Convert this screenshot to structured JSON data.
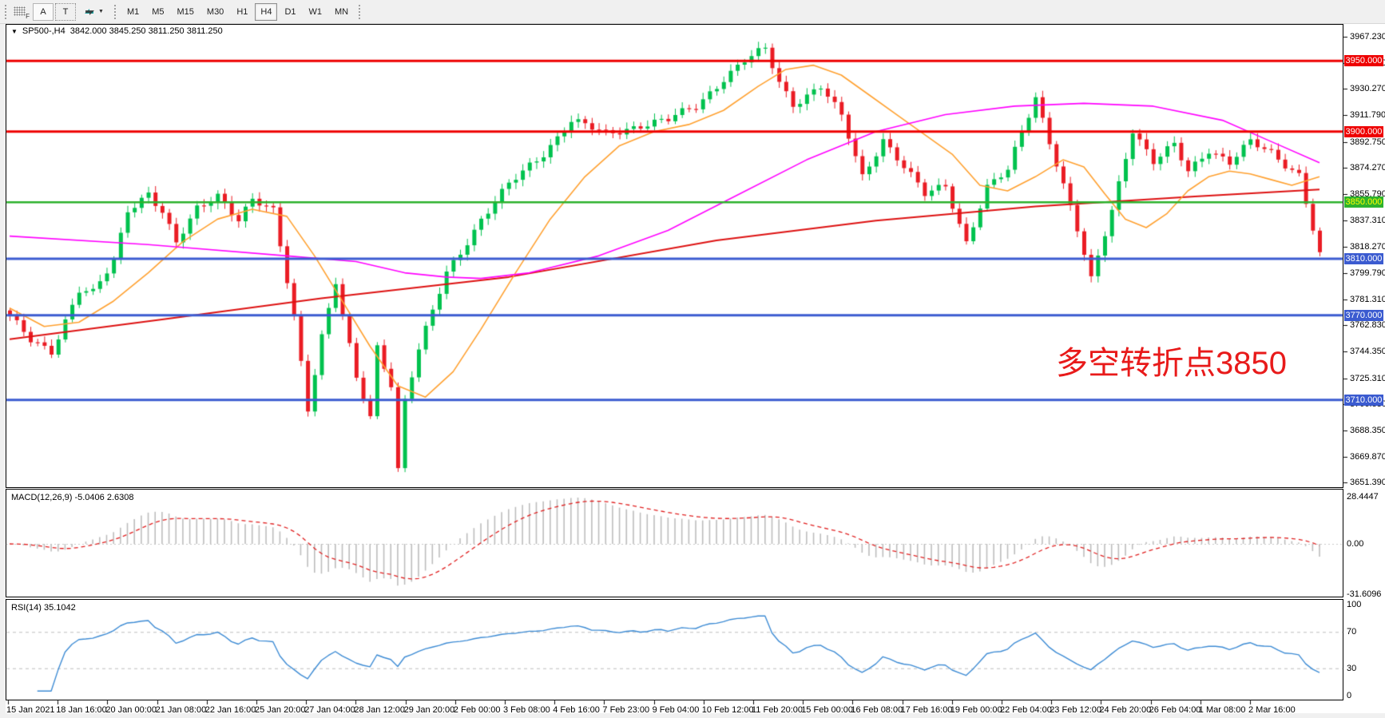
{
  "toolbar": {
    "grid_label": "F",
    "annotate_label": "A",
    "text_label": "T",
    "caret": "▼",
    "timeframes": [
      "M1",
      "M5",
      "M15",
      "M30",
      "H1",
      "H4",
      "D1",
      "W1",
      "MN"
    ],
    "active_timeframe": "H4"
  },
  "window": {
    "title_symbol_period": "SP500-,H4",
    "title_ohlc": "3842.000 3845.250 3811.250 3811.250",
    "dropdown_icon": "▼"
  },
  "indicators": {
    "macd_label": "MACD(12,26,9) -5.0406 2.6308",
    "rsi_label": "RSI(14) 35.1042"
  },
  "annotation": {
    "text": "多空转折点3850",
    "color": "#e81a1a"
  },
  "chart_data": {
    "type": "candlestick",
    "symbol": "SP500-",
    "timeframe": "H4",
    "last_bar_ohlc": {
      "open": 3842.0,
      "high": 3845.25,
      "low": 3811.25,
      "close": 3811.25
    },
    "bars": 190,
    "price_range_visible": [
      3647.8,
      3976.2
    ],
    "price_path_anchors": [
      [
        0,
        3768
      ],
      [
        3,
        3752
      ],
      [
        6,
        3745
      ],
      [
        10,
        3788
      ],
      [
        12,
        3785
      ],
      [
        15,
        3808
      ],
      [
        17,
        3845
      ],
      [
        20,
        3857
      ],
      [
        22,
        3843
      ],
      [
        24,
        3820
      ],
      [
        27,
        3845
      ],
      [
        30,
        3856
      ],
      [
        33,
        3838
      ],
      [
        35,
        3851
      ],
      [
        38,
        3843
      ],
      [
        40,
        3795
      ],
      [
        41,
        3770
      ],
      [
        43,
        3705
      ],
      [
        45,
        3755
      ],
      [
        47,
        3793
      ],
      [
        48,
        3768
      ],
      [
        50,
        3725
      ],
      [
        52,
        3698
      ],
      [
        53,
        3748
      ],
      [
        55,
        3722
      ],
      [
        56,
        3661
      ],
      [
        57,
        3710
      ],
      [
        59,
        3745
      ],
      [
        63,
        3800
      ],
      [
        68,
        3838
      ],
      [
        72,
        3862
      ],
      [
        77,
        3885
      ],
      [
        81,
        3908
      ],
      [
        86,
        3898
      ],
      [
        91,
        3905
      ],
      [
        95,
        3908
      ],
      [
        99,
        3918
      ],
      [
        103,
        3938
      ],
      [
        106,
        3950
      ],
      [
        109,
        3958
      ],
      [
        111,
        3935
      ],
      [
        113,
        3920
      ],
      [
        117,
        3932
      ],
      [
        120,
        3910
      ],
      [
        123,
        3868
      ],
      [
        126,
        3895
      ],
      [
        129,
        3875
      ],
      [
        132,
        3855
      ],
      [
        135,
        3862
      ],
      [
        138,
        3822
      ],
      [
        141,
        3860
      ],
      [
        144,
        3872
      ],
      [
        146,
        3900
      ],
      [
        148,
        3925
      ],
      [
        151,
        3878
      ],
      [
        154,
        3830
      ],
      [
        156,
        3794
      ],
      [
        159,
        3845
      ],
      [
        162,
        3902
      ],
      [
        165,
        3878
      ],
      [
        168,
        3890
      ],
      [
        170,
        3872
      ],
      [
        173,
        3888
      ],
      [
        176,
        3878
      ],
      [
        179,
        3892
      ],
      [
        182,
        3885
      ],
      [
        186,
        3870
      ],
      [
        189,
        3812
      ]
    ],
    "moving_averages": [
      {
        "name": "ma-long-red",
        "color": "#dd1111",
        "width": 2,
        "points": [
          [
            0,
            3753
          ],
          [
            22,
            3767
          ],
          [
            45,
            3782
          ],
          [
            72,
            3797
          ],
          [
            102,
            3823
          ],
          [
            125,
            3837
          ],
          [
            148,
            3847
          ],
          [
            171,
            3854
          ],
          [
            189,
            3859
          ]
        ]
      },
      {
        "name": "ma-fast-orange",
        "color": "#ffa02f",
        "width": 1.6,
        "points": [
          [
            0,
            3775
          ],
          [
            5,
            3762
          ],
          [
            10,
            3765
          ],
          [
            15,
            3780
          ],
          [
            20,
            3800
          ],
          [
            25,
            3822
          ],
          [
            30,
            3838
          ],
          [
            35,
            3845
          ],
          [
            40,
            3840
          ],
          [
            44,
            3812
          ],
          [
            48,
            3780
          ],
          [
            52,
            3748
          ],
          [
            56,
            3720
          ],
          [
            60,
            3712
          ],
          [
            64,
            3730
          ],
          [
            68,
            3760
          ],
          [
            73,
            3800
          ],
          [
            78,
            3838
          ],
          [
            83,
            3868
          ],
          [
            88,
            3890
          ],
          [
            93,
            3900
          ],
          [
            98,
            3905
          ],
          [
            103,
            3915
          ],
          [
            108,
            3932
          ],
          [
            112,
            3944
          ],
          [
            116,
            3947
          ],
          [
            120,
            3940
          ],
          [
            124,
            3926
          ],
          [
            128,
            3912
          ],
          [
            132,
            3898
          ],
          [
            136,
            3884
          ],
          [
            140,
            3862
          ],
          [
            144,
            3858
          ],
          [
            148,
            3868
          ],
          [
            152,
            3880
          ],
          [
            155,
            3875
          ],
          [
            158,
            3856
          ],
          [
            161,
            3838
          ],
          [
            164,
            3832
          ],
          [
            167,
            3842
          ],
          [
            170,
            3858
          ],
          [
            173,
            3868
          ],
          [
            176,
            3872
          ],
          [
            179,
            3870
          ],
          [
            182,
            3866
          ],
          [
            185,
            3862
          ],
          [
            189,
            3868
          ]
        ]
      },
      {
        "name": "ma-mid-magenta",
        "color": "#ff00ff",
        "width": 1.6,
        "points": [
          [
            0,
            3826
          ],
          [
            20,
            3820
          ],
          [
            40,
            3812
          ],
          [
            50,
            3808
          ],
          [
            57,
            3800
          ],
          [
            63,
            3797
          ],
          [
            68,
            3796
          ],
          [
            75,
            3800
          ],
          [
            85,
            3812
          ],
          [
            95,
            3830
          ],
          [
            105,
            3855
          ],
          [
            115,
            3880
          ],
          [
            125,
            3900
          ],
          [
            135,
            3912
          ],
          [
            145,
            3918
          ],
          [
            155,
            3920
          ],
          [
            165,
            3918
          ],
          [
            175,
            3908
          ],
          [
            182,
            3893
          ],
          [
            189,
            3878
          ]
        ]
      }
    ],
    "horizontal_levels": [
      {
        "price": 3950.0,
        "label": "3950.000",
        "color": "#ee0000",
        "badge_bg": "#ee0000",
        "badge_fg": "#ffffff",
        "width": 3
      },
      {
        "price": 3900.0,
        "label": "3900.000",
        "color": "#ee0000",
        "badge_bg": "#ee0000",
        "badge_fg": "#ffffff",
        "width": 3
      },
      {
        "price": 3850.0,
        "label": "3850.000",
        "color": "#2db22d",
        "badge_bg": "#2db22d",
        "badge_fg": "#ffff00",
        "width": 2.5
      },
      {
        "price": 3810.0,
        "label": "3810.000",
        "color": "#3b5bd0",
        "badge_bg": "#3b5bd0",
        "badge_fg": "#ffffff",
        "width": 3
      },
      {
        "price": 3770.0,
        "label": "3770.000",
        "color": "#3b5bd0",
        "badge_bg": "#3b5bd0",
        "badge_fg": "#ffffff",
        "width": 3
      },
      {
        "price": 3710.0,
        "label": "3710.000",
        "color": "#3b5bd0",
        "badge_bg": "#3b5bd0",
        "badge_fg": "#ffffff",
        "width": 3
      }
    ],
    "price_axis_ticks": [
      {
        "label": "3967.230",
        "value": 3967.23
      },
      {
        "label": "3948.750",
        "value": 3948.75
      },
      {
        "label": "3930.270",
        "value": 3930.27
      },
      {
        "label": "3911.790",
        "value": 3911.79
      },
      {
        "label": "3892.750",
        "value": 3892.75
      },
      {
        "label": "3874.270",
        "value": 3874.27
      },
      {
        "label": "3855.790",
        "value": 3855.79
      },
      {
        "label": "3837.310",
        "value": 3837.31
      },
      {
        "label": "3818.270",
        "value": 3818.27
      },
      {
        "label": "3799.790",
        "value": 3799.79
      },
      {
        "label": "3781.310",
        "value": 3781.31
      },
      {
        "label": "3762.830",
        "value": 3762.83
      },
      {
        "label": "3744.350",
        "value": 3744.35
      },
      {
        "label": "3725.310",
        "value": 3725.31
      },
      {
        "label": "3706.830",
        "value": 3706.83
      },
      {
        "label": "3688.350",
        "value": 3688.35
      },
      {
        "label": "3669.870",
        "value": 3669.87
      },
      {
        "label": "3651.390",
        "value": 3651.39
      }
    ],
    "time_axis_labels": [
      "15 Jan 2021",
      "18 Jan 16:00",
      "20 Jan 00:00",
      "21 Jan 08:00",
      "22 Jan 16:00",
      "25 Jan 20:00",
      "27 Jan 04:00",
      "28 Jan 12:00",
      "29 Jan 20:00",
      "2 Feb 00:00",
      "3 Feb 08:00",
      "4 Feb 16:00",
      "7 Feb 23:00",
      "9 Feb 04:00",
      "10 Feb 12:00",
      "11 Feb 20:00",
      "15 Feb 00:00",
      "16 Feb 08:00",
      "17 Feb 16:00",
      "19 Feb 00:00",
      "22 Feb 04:00",
      "23 Feb 12:00",
      "24 Feb 20:00",
      "26 Feb 04:00",
      "1 Mar 08:00",
      "2 Mar 16:00"
    ],
    "macd": {
      "params": [
        12,
        26,
        9
      ],
      "main_value": -5.0406,
      "signal_value": 2.6308,
      "axis_labels": [
        {
          "label": "28.4447",
          "value": 28.4447
        },
        {
          "label": "0.00",
          "value": 0
        },
        {
          "label": "-31.6096",
          "value": -31.6096
        }
      ],
      "hist_color": "#bdbdbd",
      "signal_color": "#e02020"
    },
    "rsi": {
      "period": 14,
      "value": 35.1042,
      "axis_labels": [
        {
          "label": "100",
          "value": 100
        },
        {
          "label": "70",
          "value": 70
        },
        {
          "label": "30",
          "value": 30
        },
        {
          "label": "0",
          "value": 0
        }
      ],
      "levels": [
        30,
        70
      ],
      "line_color": "#3d8bd4",
      "level_color": "#c8c8c8"
    },
    "candle_up_color": "#00c24e",
    "candle_down_color": "#ea1c24"
  }
}
